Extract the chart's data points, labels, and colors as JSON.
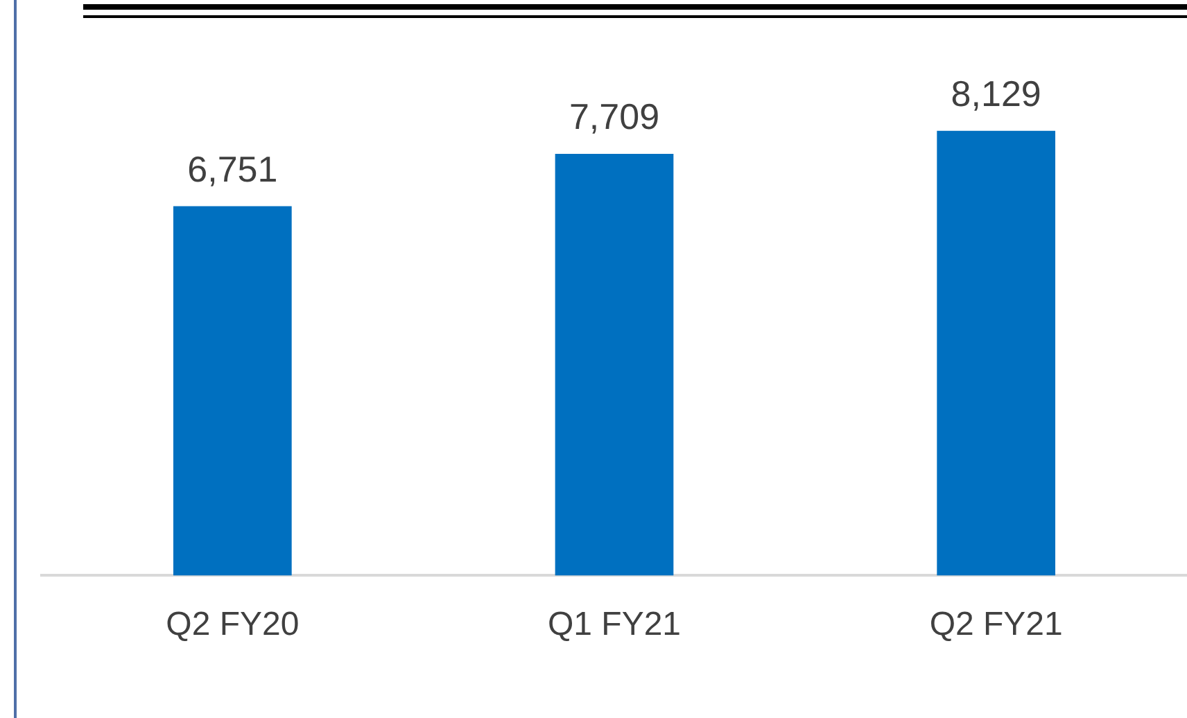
{
  "chart_data": {
    "type": "bar",
    "categories": [
      "Q2 FY20",
      "Q1 FY21",
      "Q2 FY21"
    ],
    "values": [
      6751,
      7709,
      8129
    ],
    "color": "#0070c0",
    "value_labels": [
      "6,751",
      "7,709",
      "8,129"
    ],
    "grid": false,
    "legend": false
  }
}
